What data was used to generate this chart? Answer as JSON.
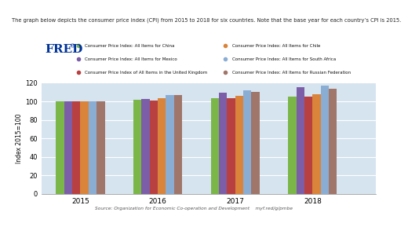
{
  "title": "FRED",
  "years": [
    2015,
    2016,
    2017,
    2018
  ],
  "countries": [
    "Consumer Price Index: All Items for China",
    "Consumer Price Index: All Items for Mexico",
    "Consumer Price Index of All Items in the United Kingdom",
    "Consumer Price Index: All Items for Chile",
    "Consumer Price Index: All Items for South Africa",
    "Consumer Price Index: All Items for Russian Federation"
  ],
  "colors": [
    "#7ab648",
    "#7b5ea7",
    "#b94040",
    "#d9843a",
    "#8aadd4",
    "#a0756a"
  ],
  "values": {
    "China": [
      100.0,
      102.0,
      103.5,
      105.5
    ],
    "Mexico": [
      100.0,
      102.8,
      109.0,
      115.0
    ],
    "UK": [
      100.0,
      101.0,
      103.5,
      105.5
    ],
    "Chile": [
      100.0,
      103.8,
      106.0,
      107.5
    ],
    "SouthAfrica": [
      100.0,
      106.5,
      111.5,
      117.0
    ],
    "Russia": [
      100.0,
      107.0,
      110.5,
      113.5
    ]
  },
  "ylim": [
    0,
    120
  ],
  "yticks": [
    0,
    20,
    40,
    60,
    80,
    100,
    120
  ],
  "ylabel": "Index 2015=100",
  "source": "Source: Organization for Economic Co-operation and Development    myf.red/g/pmbe",
  "bg_color": "#d6e4f0",
  "top_text": "The graph below depicts the consumer price index (CPI) from 2015 to 2018 for six countries. Note that the base year for each country’s CPI is 2015."
}
